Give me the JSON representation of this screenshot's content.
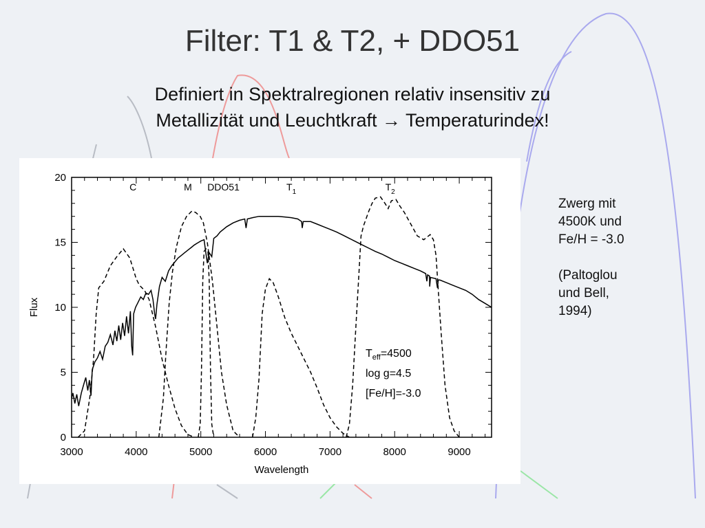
{
  "slide": {
    "title": "Filter: T1 & T2, + DDO51",
    "subtitle_line1": "Definiert in Spektralregionen relativ insensitiv zu",
    "subtitle_line2": "Metallizität und Leuchtkraft → Temperaturindex!",
    "note_lines": [
      "Zwerg mit",
      "4500K und",
      "Fe/H = -3.0"
    ],
    "reference_lines": [
      "(Paltoglou",
      "und Bell,",
      "1994)"
    ]
  },
  "colors": {
    "background": "#eef1f5",
    "deco_blue": "#a9a9ee",
    "deco_red": "#ee9a9a",
    "deco_green": "#9ae6a6",
    "deco_gray": "#b8bcc4"
  },
  "chart_data": {
    "type": "line",
    "title": "",
    "xlabel": "Wavelength",
    "ylabel": "Flux",
    "xlim": [
      3000,
      9500
    ],
    "ylim": [
      0,
      20
    ],
    "x_ticks": [
      3000,
      4000,
      5000,
      6000,
      7000,
      8000,
      9000
    ],
    "y_ticks": [
      0,
      5,
      10,
      15,
      20
    ],
    "grid": false,
    "legend": "none",
    "filter_labels": [
      {
        "text": "C",
        "x": 3950,
        "y": 19
      },
      {
        "text": "M",
        "x": 4800,
        "y": 19
      },
      {
        "text": "DDO51",
        "x": 5350,
        "y": 19
      },
      {
        "text": "T1",
        "x": 6400,
        "y": 19
      },
      {
        "text": "T2",
        "x": 7930,
        "y": 19
      }
    ],
    "annotation_lines": [
      "Teff=4500",
      "log g=4.5",
      "[Fe/H]=-3.0"
    ],
    "series": [
      {
        "style": "solid",
        "points": [
          [
            3000,
            3.0
          ],
          [
            3020,
            3.4
          ],
          [
            3050,
            2.6
          ],
          [
            3080,
            3.3
          ],
          [
            3110,
            2.4
          ],
          [
            3150,
            3.4
          ],
          [
            3190,
            4.1
          ],
          [
            3220,
            4.6
          ],
          [
            3250,
            3.6
          ],
          [
            3275,
            4.4
          ],
          [
            3300,
            3.2
          ],
          [
            3320,
            5.2
          ],
          [
            3360,
            5.8
          ],
          [
            3400,
            6.1
          ],
          [
            3440,
            6.6
          ],
          [
            3480,
            6.0
          ],
          [
            3520,
            7.0
          ],
          [
            3560,
            7.3
          ],
          [
            3600,
            7.9
          ],
          [
            3640,
            7.1
          ],
          [
            3670,
            8.2
          ],
          [
            3700,
            7.4
          ],
          [
            3730,
            8.6
          ],
          [
            3760,
            7.5
          ],
          [
            3790,
            8.8
          ],
          [
            3820,
            7.8
          ],
          [
            3850,
            9.3
          ],
          [
            3880,
            8.0
          ],
          [
            3910,
            9.7
          ],
          [
            3930,
            7.0
          ],
          [
            3945,
            6.3
          ],
          [
            3960,
            9.5
          ],
          [
            3990,
            10.0
          ],
          [
            4030,
            10.4
          ],
          [
            4070,
            10.8
          ],
          [
            4110,
            10.6
          ],
          [
            4150,
            11.1
          ],
          [
            4190,
            11.0
          ],
          [
            4230,
            11.3
          ],
          [
            4260,
            10.6
          ],
          [
            4285,
            9.5
          ],
          [
            4300,
            9.1
          ],
          [
            4320,
            10.2
          ],
          [
            4360,
            11.6
          ],
          [
            4400,
            12.3
          ],
          [
            4450,
            12.0
          ],
          [
            4500,
            12.8
          ],
          [
            4550,
            13.2
          ],
          [
            4600,
            13.5
          ],
          [
            4650,
            13.8
          ],
          [
            4700,
            14.0
          ],
          [
            4750,
            14.2
          ],
          [
            4800,
            14.4
          ],
          [
            4850,
            14.6
          ],
          [
            4900,
            14.8
          ],
          [
            4950,
            14.95
          ],
          [
            5000,
            15.1
          ],
          [
            5050,
            15.2
          ],
          [
            5080,
            14.1
          ],
          [
            5100,
            13.4
          ],
          [
            5130,
            14.2
          ],
          [
            5170,
            13.9
          ],
          [
            5200,
            15.3
          ],
          [
            5250,
            15.5
          ],
          [
            5300,
            15.8
          ],
          [
            5400,
            16.2
          ],
          [
            5500,
            16.5
          ],
          [
            5600,
            16.7
          ],
          [
            5680,
            16.8
          ],
          [
            5700,
            16.1
          ],
          [
            5720,
            16.8
          ],
          [
            5800,
            16.9
          ],
          [
            5900,
            17.0
          ],
          [
            6000,
            17.0
          ],
          [
            6100,
            17.0
          ],
          [
            6200,
            17.0
          ],
          [
            6300,
            16.95
          ],
          [
            6400,
            16.9
          ],
          [
            6500,
            16.8
          ],
          [
            6560,
            16.6
          ],
          [
            6570,
            16.1
          ],
          [
            6585,
            16.6
          ],
          [
            6700,
            16.6
          ],
          [
            6800,
            16.4
          ],
          [
            6900,
            16.2
          ],
          [
            7000,
            16.0
          ],
          [
            7100,
            15.8
          ],
          [
            7200,
            15.55
          ],
          [
            7300,
            15.3
          ],
          [
            7400,
            15.05
          ],
          [
            7500,
            14.8
          ],
          [
            7600,
            14.55
          ],
          [
            7700,
            14.3
          ],
          [
            7800,
            14.1
          ],
          [
            7900,
            13.85
          ],
          [
            8000,
            13.6
          ],
          [
            8100,
            13.4
          ],
          [
            8200,
            13.2
          ],
          [
            8300,
            13.0
          ],
          [
            8400,
            12.8
          ],
          [
            8480,
            12.6
          ],
          [
            8498,
            12.0
          ],
          [
            8510,
            12.5
          ],
          [
            8540,
            12.4
          ],
          [
            8542,
            11.6
          ],
          [
            8555,
            12.3
          ],
          [
            8640,
            12.2
          ],
          [
            8662,
            11.5
          ],
          [
            8675,
            12.1
          ],
          [
            8700,
            12.1
          ],
          [
            8800,
            11.9
          ],
          [
            8900,
            11.7
          ],
          [
            9000,
            11.5
          ],
          [
            9100,
            11.3
          ],
          [
            9200,
            11.0
          ],
          [
            9300,
            10.6
          ],
          [
            9400,
            10.3
          ],
          [
            9500,
            10.0
          ]
        ]
      },
      {
        "name": "C",
        "style": "dashed",
        "points": [
          [
            3100,
            0.0
          ],
          [
            3200,
            0.5
          ],
          [
            3280,
            3.0
          ],
          [
            3340,
            6.0
          ],
          [
            3380,
            9.5
          ],
          [
            3420,
            11.5
          ],
          [
            3500,
            12.0
          ],
          [
            3600,
            13.2
          ],
          [
            3700,
            13.9
          ],
          [
            3800,
            14.5
          ],
          [
            3900,
            13.8
          ],
          [
            3950,
            13.0
          ],
          [
            4000,
            12.2
          ],
          [
            4050,
            11.7
          ],
          [
            4130,
            11.3
          ],
          [
            4200,
            10.6
          ],
          [
            4300,
            8.5
          ],
          [
            4400,
            6.0
          ],
          [
            4500,
            4.0
          ],
          [
            4600,
            2.2
          ],
          [
            4700,
            0.9
          ],
          [
            4800,
            0.2
          ],
          [
            4900,
            0.0
          ]
        ]
      },
      {
        "name": "M",
        "style": "dashed",
        "points": [
          [
            4350,
            0.0
          ],
          [
            4420,
            3.0
          ],
          [
            4460,
            6.5
          ],
          [
            4510,
            10.3
          ],
          [
            4560,
            12.7
          ],
          [
            4620,
            14.6
          ],
          [
            4700,
            16.2
          ],
          [
            4780,
            17.0
          ],
          [
            4860,
            17.4
          ],
          [
            4920,
            17.3
          ],
          [
            4990,
            17.0
          ],
          [
            5040,
            16.5
          ],
          [
            5100,
            15.0
          ],
          [
            5180,
            12.0
          ],
          [
            5250,
            8.5
          ],
          [
            5320,
            5.0
          ],
          [
            5400,
            2.5
          ],
          [
            5500,
            0.5
          ],
          [
            5600,
            0.0
          ]
        ]
      },
      {
        "name": "DDO51",
        "style": "dashed",
        "points": [
          [
            4960,
            0.0
          ],
          [
            4990,
            1.0
          ],
          [
            5010,
            5.0
          ],
          [
            5030,
            12.0
          ],
          [
            5050,
            14.3
          ],
          [
            5080,
            14.5
          ],
          [
            5110,
            14.3
          ],
          [
            5130,
            12.0
          ],
          [
            5150,
            5.0
          ],
          [
            5170,
            1.0
          ],
          [
            5200,
            0.0
          ]
        ]
      },
      {
        "name": "T1",
        "style": "dashed",
        "points": [
          [
            5800,
            0.0
          ],
          [
            5850,
            1.5
          ],
          [
            5900,
            4.5
          ],
          [
            5950,
            9.5
          ],
          [
            6000,
            11.4
          ],
          [
            6060,
            12.2
          ],
          [
            6120,
            11.9
          ],
          [
            6200,
            10.8
          ],
          [
            6300,
            9.2
          ],
          [
            6400,
            8.0
          ],
          [
            6500,
            7.0
          ],
          [
            6600,
            6.0
          ],
          [
            6700,
            5.0
          ],
          [
            6800,
            3.8
          ],
          [
            6900,
            2.5
          ],
          [
            7000,
            1.5
          ],
          [
            7100,
            0.8
          ],
          [
            7200,
            0.3
          ],
          [
            7300,
            0.0
          ]
        ]
      },
      {
        "name": "T2",
        "style": "dashed",
        "points": [
          [
            7250,
            0.0
          ],
          [
            7300,
            1.0
          ],
          [
            7350,
            4.0
          ],
          [
            7400,
            8.5
          ],
          [
            7440,
            12.0
          ],
          [
            7480,
            15.5
          ],
          [
            7520,
            16.3
          ],
          [
            7600,
            17.4
          ],
          [
            7650,
            18.0
          ],
          [
            7700,
            18.4
          ],
          [
            7780,
            18.5
          ],
          [
            7850,
            18.0
          ],
          [
            7900,
            17.6
          ],
          [
            7950,
            18.2
          ],
          [
            8020,
            18.3
          ],
          [
            8080,
            17.8
          ],
          [
            8150,
            17.3
          ],
          [
            8250,
            16.4
          ],
          [
            8350,
            15.5
          ],
          [
            8450,
            15.2
          ],
          [
            8550,
            15.6
          ],
          [
            8600,
            15.2
          ],
          [
            8640,
            14.0
          ],
          [
            8680,
            11.0
          ],
          [
            8720,
            8.0
          ],
          [
            8780,
            4.0
          ],
          [
            8850,
            1.5
          ],
          [
            8920,
            0.5
          ],
          [
            9000,
            0.0
          ]
        ]
      }
    ]
  }
}
